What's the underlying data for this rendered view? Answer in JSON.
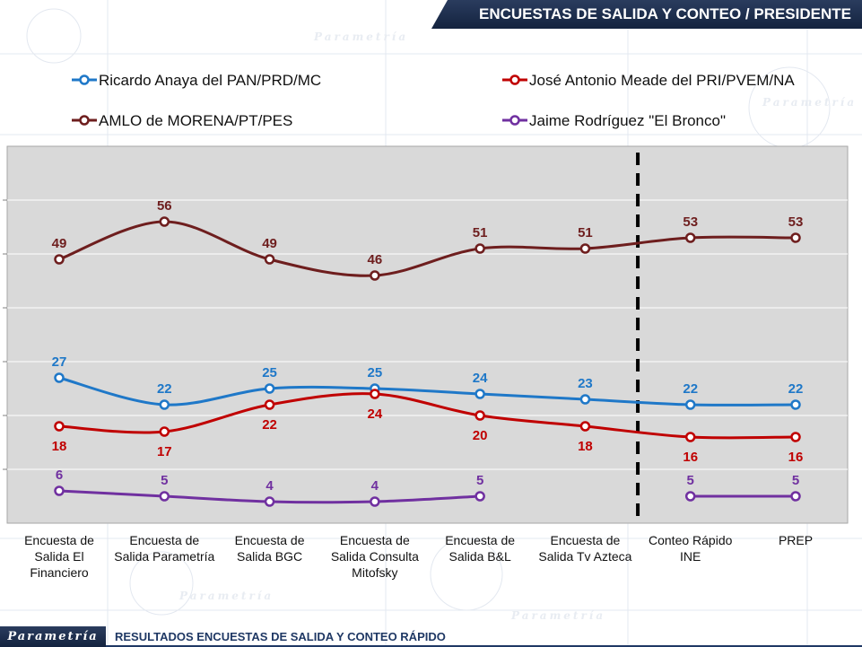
{
  "header": {
    "title": "ENCUESTAS DE SALIDA Y CONTEO / PRESIDENTE"
  },
  "footer": {
    "logo": "Parametría",
    "text": "RESULTADOS ENCUESTAS DE SALIDA Y CONTEO RÁPIDO"
  },
  "watermark": "Parametría",
  "chart_data": {
    "type": "line",
    "title": "",
    "xlabel": "",
    "ylabel": "",
    "ylim": [
      0,
      70
    ],
    "grid": true,
    "legend_position": "top",
    "divider_after_category_index": 5,
    "categories": [
      "Encuesta de Salida El Financiero",
      "Encuesta de Salida Parametría",
      "Encuesta de Salida BGC",
      "Encuesta de Salida Consulta Mitofsky",
      "Encuesta de Salida B&L",
      "Encuesta de Salida Tv Azteca",
      "Conteo Rápido INE",
      "PREP"
    ],
    "category_lines": [
      [
        "Encuesta de",
        "Salida El",
        "Financiero"
      ],
      [
        "Encuesta de",
        "Salida Parametría"
      ],
      [
        "Encuesta de",
        "Salida BGC"
      ],
      [
        "Encuesta de",
        "Salida Consulta",
        "Mitofsky"
      ],
      [
        "Encuesta de",
        "Salida B&L"
      ],
      [
        "Encuesta de",
        "Salida Tv Azteca"
      ],
      [
        "Conteo Rápido",
        "INE"
      ],
      [
        "PREP"
      ]
    ],
    "series": [
      {
        "name": "Ricardo Anaya del PAN/PRD/MC",
        "color": "#1f78c8",
        "label_pos": "above",
        "values": [
          27,
          22,
          25,
          25,
          24,
          23,
          22,
          22
        ]
      },
      {
        "name": "José Antonio Meade del PRI/PVEM/NA",
        "color": "#c00000",
        "label_pos": "below",
        "values": [
          18,
          17,
          22,
          24,
          20,
          18,
          16,
          16
        ]
      },
      {
        "name": "AMLO de MORENA/PT/PES",
        "color": "#6e1e1e",
        "label_pos": "above",
        "values": [
          49,
          56,
          49,
          46,
          51,
          51,
          53,
          53
        ]
      },
      {
        "name": "Jaime Rodríguez \"El Bronco\"",
        "color": "#7030a0",
        "label_pos": "above",
        "values": [
          6,
          5,
          4,
          4,
          5,
          null,
          5,
          5
        ]
      }
    ]
  }
}
